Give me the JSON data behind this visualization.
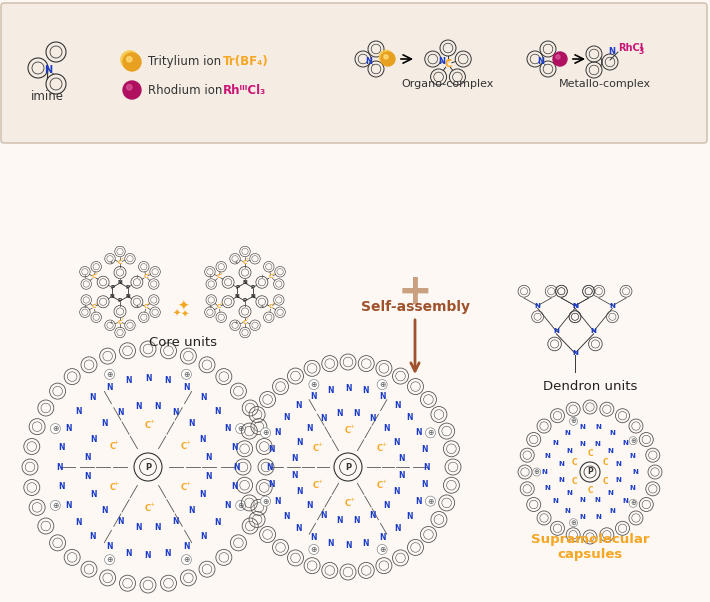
{
  "bg_color": "#fdf8f4",
  "top_box_color": "#f5ede4",
  "title": "",
  "imine_label": "imine",
  "tritylium_label": "Tritylium ion",
  "tritylium_formula": "Tr(BF₄)",
  "tritylium_color": "#f5a623",
  "rhodium_label": "Rhodium ion",
  "rhodium_formula": "RhᴵᴵᴵCl₃",
  "rhodium_color": "#cc1477",
  "organo_label": "Organo-complex",
  "metallo_label": "Metallo-complex",
  "core_label": "Core units",
  "dendron_label": "Dendron units",
  "self_assembly_label": "Self-assembly",
  "self_assembly_color": "#a0522d",
  "supramolecular_label": "Supramolecular\ncapsules",
  "supramolecular_color": "#f5a623",
  "arrow_color": "#2f2f2f",
  "blue_n_color": "#1a3cc8",
  "orange_c_color": "#f5a623",
  "gray_ring_color": "#888888",
  "black_color": "#111111",
  "pink_color": "#cc1477",
  "plus_color": "#555555",
  "bond_color": "#111111"
}
